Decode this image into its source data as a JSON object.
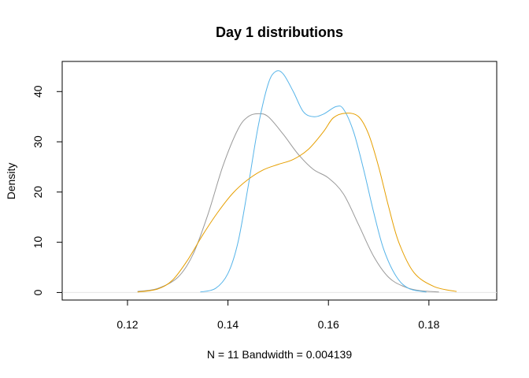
{
  "chart_data": {
    "type": "line",
    "title": "Day 1 distributions",
    "xlabel": "N = 11   Bandwidth = 0.004139",
    "ylabel": "Density",
    "xlim": [
      0.107,
      0.1935
    ],
    "ylim": [
      -1.5,
      46
    ],
    "xticks": [
      0.12,
      0.14,
      0.16,
      0.18
    ],
    "xtick_labels": [
      "0.12",
      "0.14",
      "0.16",
      "0.18"
    ],
    "yticks": [
      0,
      10,
      20,
      30,
      40
    ],
    "ytick_labels": [
      "0",
      "10",
      "20",
      "30",
      "40"
    ],
    "grid": false,
    "baseline": 0,
    "series": [
      {
        "color": "#999999",
        "x": [
          0.122,
          0.126,
          0.13,
          0.133,
          0.136,
          0.139,
          0.142,
          0.144,
          0.146,
          0.148,
          0.151,
          0.154,
          0.157,
          0.16,
          0.163,
          0.166,
          0.169,
          0.172,
          0.175,
          0.178,
          0.182
        ],
        "y": [
          0.2,
          0.8,
          3,
          7.5,
          15.5,
          25.2,
          32.5,
          35,
          35.6,
          35,
          31.5,
          27.5,
          24.5,
          22.8,
          19.6,
          13.5,
          7.2,
          3,
          1.2,
          0.4,
          0.1
        ]
      },
      {
        "color": "#56B4E9",
        "x": [
          0.1345,
          0.1375,
          0.14,
          0.142,
          0.144,
          0.146,
          0.148,
          0.1495,
          0.151,
          0.153,
          0.155,
          0.157,
          0.159,
          0.1615,
          0.163,
          0.165,
          0.167,
          0.169,
          0.171,
          0.1735,
          0.176,
          0.1795
        ],
        "y": [
          0.1,
          0.8,
          3.8,
          10,
          21,
          33,
          41.5,
          44,
          43.5,
          40,
          36,
          35,
          35.5,
          37,
          36.5,
          32,
          24.5,
          16,
          8.6,
          3.2,
          0.8,
          0.1
        ]
      },
      {
        "color": "#E69F00",
        "x": [
          0.122,
          0.126,
          0.129,
          0.132,
          0.135,
          0.138,
          0.141,
          0.144,
          0.147,
          0.15,
          0.153,
          0.156,
          0.159,
          0.161,
          0.1635,
          0.166,
          0.168,
          0.17,
          0.172,
          0.174,
          0.177,
          0.181,
          0.1855
        ],
        "y": [
          0.1,
          0.7,
          2.5,
          6.5,
          11.5,
          16,
          19.8,
          22.5,
          24.4,
          25.5,
          26.5,
          28.5,
          32,
          34.8,
          35.7,
          35,
          31.5,
          25,
          17,
          10,
          4,
          1.2,
          0.2
        ]
      }
    ]
  }
}
